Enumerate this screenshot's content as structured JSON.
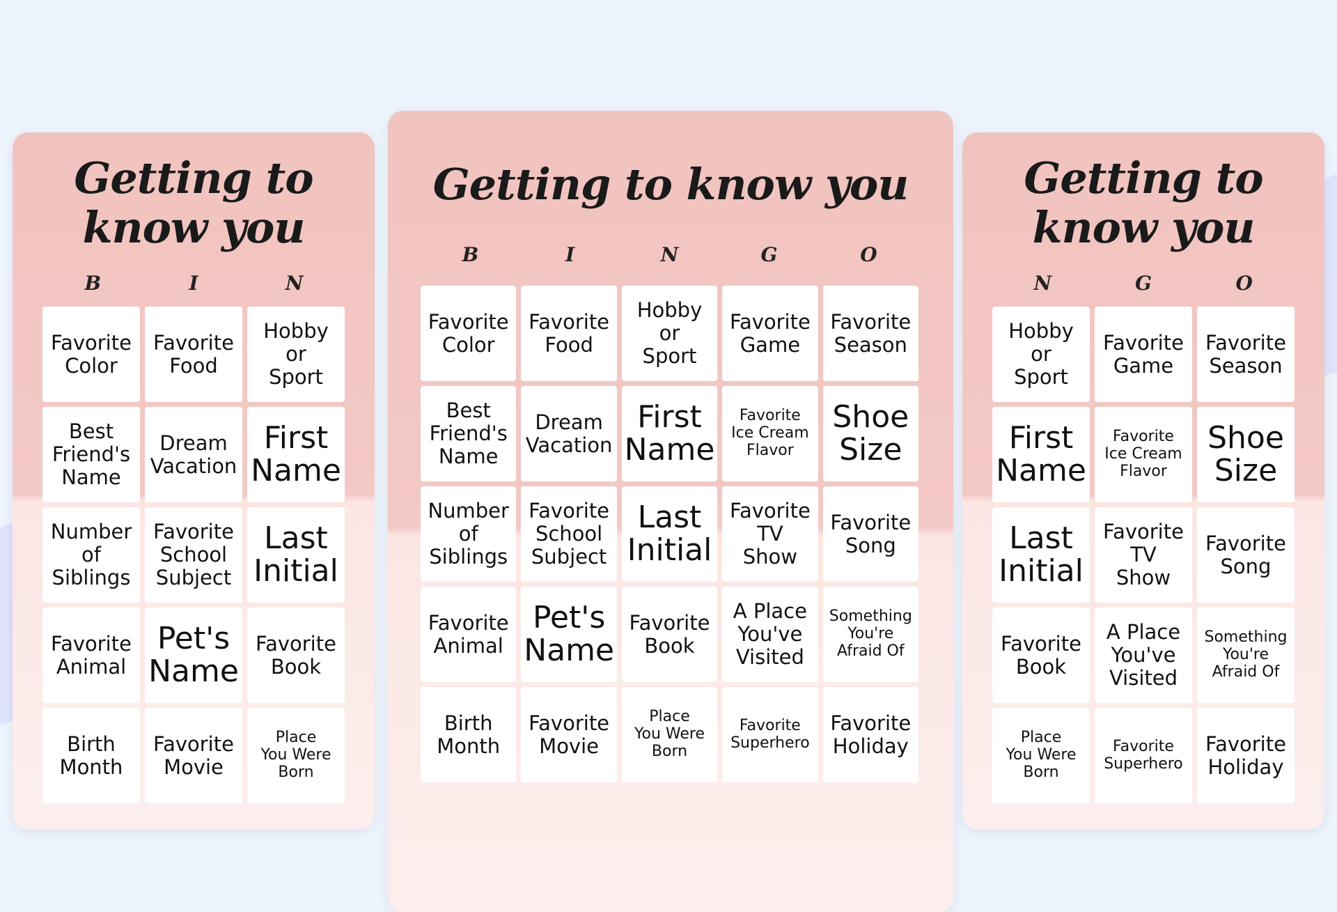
{
  "card": {
    "title": "Getting to know you",
    "letters": [
      "B",
      "I",
      "N",
      "G",
      "O"
    ],
    "cells": [
      "Favorite\nColor",
      "Favorite\nFood",
      "Hobby\nor\nSport",
      "Favorite\nGame",
      "Favorite\nSeason",
      "Best\nFriend's\nName",
      "Dream\nVacation",
      "First\nName",
      "Favorite\nIce Cream\nFlavor",
      "Shoe\nSize",
      "Number\nof\nSiblings",
      "Favorite\nSchool\nSubject",
      "Last\nInitial",
      "Favorite\nTV\nShow",
      "Favorite\nSong",
      "Favorite\nAnimal",
      "Pet's\nName",
      "Favorite\nBook",
      "A Place\nYou've\nVisited",
      "Something\nYou're\nAfraid Of",
      "Birth\nMonth",
      "Favorite\nMovie",
      "Place\nYou Were\nBorn",
      "Favorite\nSuperhero",
      "Favorite\nHoliday"
    ]
  },
  "colors": {
    "background": "#eef4fd",
    "card_top": "#f1c3bf",
    "card_bottom": "#fcefed"
  }
}
